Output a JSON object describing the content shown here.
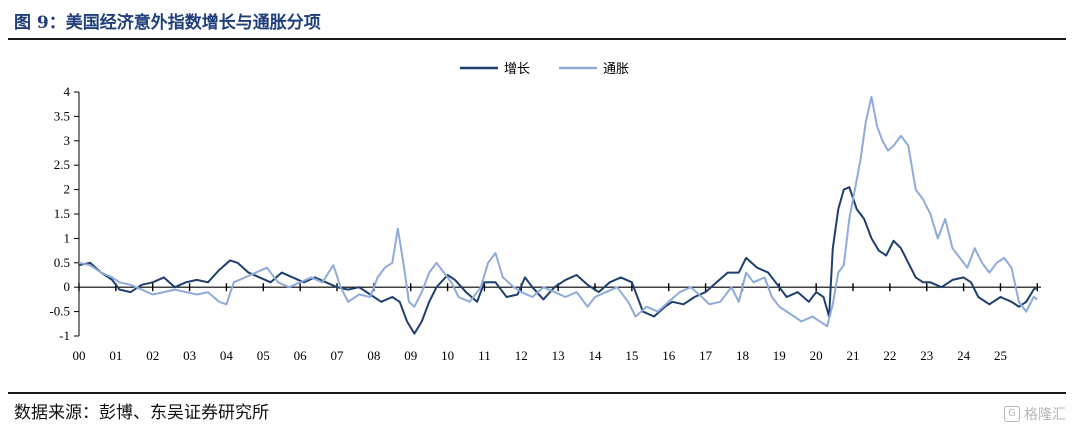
{
  "title": "图 9：美国经济意外指数增长与通胀分项",
  "source": "数据来源：彭博、东吴证券研究所",
  "watermark": "格隆汇",
  "watermark_icon": "G",
  "chart_data": {
    "type": "line",
    "title": "",
    "xlabel": "",
    "ylabel": "",
    "ylim": [
      -1,
      4
    ],
    "y_ticks": [
      -1,
      -0.5,
      0,
      0.5,
      1,
      1.5,
      2,
      2.5,
      3,
      3.5,
      4
    ],
    "x_tick_labels": [
      "00",
      "01",
      "02",
      "03",
      "04",
      "05",
      "06",
      "07",
      "08",
      "09",
      "10",
      "11",
      "12",
      "13",
      "14",
      "15",
      "16",
      "17",
      "18",
      "19",
      "20",
      "21",
      "22",
      "23",
      "24",
      "25"
    ],
    "x_range": [
      2000.0,
      2026.1
    ],
    "legend_position": "top-center",
    "series": [
      {
        "name": "增长",
        "color": "#1f3f6e",
        "points": [
          [
            2000.0,
            0.45
          ],
          [
            2000.3,
            0.5
          ],
          [
            2000.6,
            0.3
          ],
          [
            2000.9,
            0.15
          ],
          [
            2001.1,
            -0.05
          ],
          [
            2001.4,
            -0.1
          ],
          [
            2001.7,
            0.05
          ],
          [
            2002.0,
            0.1
          ],
          [
            2002.3,
            0.2
          ],
          [
            2002.6,
            0.0
          ],
          [
            2002.9,
            0.1
          ],
          [
            2003.2,
            0.15
          ],
          [
            2003.5,
            0.1
          ],
          [
            2003.8,
            0.35
          ],
          [
            2004.1,
            0.55
          ],
          [
            2004.3,
            0.5
          ],
          [
            2004.6,
            0.3
          ],
          [
            2004.9,
            0.2
          ],
          [
            2005.2,
            0.1
          ],
          [
            2005.5,
            0.3
          ],
          [
            2005.8,
            0.2
          ],
          [
            2006.1,
            0.1
          ],
          [
            2006.4,
            0.2
          ],
          [
            2006.7,
            0.1
          ],
          [
            2007.0,
            0.0
          ],
          [
            2007.3,
            -0.05
          ],
          [
            2007.6,
            0.0
          ],
          [
            2007.9,
            -0.15
          ],
          [
            2008.2,
            -0.3
          ],
          [
            2008.5,
            -0.2
          ],
          [
            2008.7,
            -0.3
          ],
          [
            2008.9,
            -0.7
          ],
          [
            2009.1,
            -0.95
          ],
          [
            2009.3,
            -0.7
          ],
          [
            2009.5,
            -0.3
          ],
          [
            2009.7,
            0.0
          ],
          [
            2010.0,
            0.25
          ],
          [
            2010.2,
            0.15
          ],
          [
            2010.5,
            -0.1
          ],
          [
            2010.8,
            -0.3
          ],
          [
            2011.0,
            0.1
          ],
          [
            2011.3,
            0.1
          ],
          [
            2011.6,
            -0.2
          ],
          [
            2011.9,
            -0.15
          ],
          [
            2012.1,
            0.2
          ],
          [
            2012.3,
            0.0
          ],
          [
            2012.6,
            -0.25
          ],
          [
            2012.9,
            0.0
          ],
          [
            2013.2,
            0.15
          ],
          [
            2013.5,
            0.25
          ],
          [
            2013.8,
            0.05
          ],
          [
            2014.1,
            -0.1
          ],
          [
            2014.4,
            0.1
          ],
          [
            2014.7,
            0.2
          ],
          [
            2015.0,
            0.1
          ],
          [
            2015.3,
            -0.5
          ],
          [
            2015.6,
            -0.6
          ],
          [
            2015.9,
            -0.4
          ],
          [
            2016.1,
            -0.3
          ],
          [
            2016.4,
            -0.35
          ],
          [
            2016.7,
            -0.2
          ],
          [
            2017.0,
            -0.1
          ],
          [
            2017.3,
            0.1
          ],
          [
            2017.6,
            0.3
          ],
          [
            2017.9,
            0.3
          ],
          [
            2018.1,
            0.6
          ],
          [
            2018.4,
            0.4
          ],
          [
            2018.7,
            0.3
          ],
          [
            2018.9,
            0.1
          ],
          [
            2019.2,
            -0.2
          ],
          [
            2019.5,
            -0.1
          ],
          [
            2019.8,
            -0.3
          ],
          [
            2020.0,
            -0.1
          ],
          [
            2020.2,
            -0.2
          ],
          [
            2020.35,
            -0.6
          ],
          [
            2020.45,
            0.8
          ],
          [
            2020.6,
            1.6
          ],
          [
            2020.75,
            2.0
          ],
          [
            2020.9,
            2.05
          ],
          [
            2021.1,
            1.6
          ],
          [
            2021.3,
            1.4
          ],
          [
            2021.5,
            1.0
          ],
          [
            2021.7,
            0.75
          ],
          [
            2021.9,
            0.65
          ],
          [
            2022.1,
            0.95
          ],
          [
            2022.3,
            0.8
          ],
          [
            2022.5,
            0.5
          ],
          [
            2022.7,
            0.2
          ],
          [
            2022.9,
            0.1
          ],
          [
            2023.1,
            0.1
          ],
          [
            2023.4,
            0.0
          ],
          [
            2023.7,
            0.15
          ],
          [
            2024.0,
            0.2
          ],
          [
            2024.2,
            0.1
          ],
          [
            2024.4,
            -0.2
          ],
          [
            2024.7,
            -0.35
          ],
          [
            2025.0,
            -0.2
          ],
          [
            2025.3,
            -0.3
          ],
          [
            2025.5,
            -0.4
          ],
          [
            2025.7,
            -0.3
          ],
          [
            2025.9,
            -0.05
          ],
          [
            2026.0,
            0.0
          ]
        ]
      },
      {
        "name": "通胀",
        "color": "#8eabda",
        "points": [
          [
            2000.0,
            0.5
          ],
          [
            2000.3,
            0.45
          ],
          [
            2000.6,
            0.3
          ],
          [
            2000.9,
            0.2
          ],
          [
            2001.1,
            0.1
          ],
          [
            2001.4,
            0.05
          ],
          [
            2001.7,
            -0.05
          ],
          [
            2002.0,
            -0.15
          ],
          [
            2002.3,
            -0.1
          ],
          [
            2002.6,
            -0.05
          ],
          [
            2002.9,
            -0.1
          ],
          [
            2003.2,
            -0.15
          ],
          [
            2003.5,
            -0.1
          ],
          [
            2003.8,
            -0.3
          ],
          [
            2004.0,
            -0.35
          ],
          [
            2004.2,
            0.1
          ],
          [
            2004.5,
            0.2
          ],
          [
            2004.8,
            0.3
          ],
          [
            2005.1,
            0.4
          ],
          [
            2005.4,
            0.1
          ],
          [
            2005.7,
            0.0
          ],
          [
            2006.0,
            0.1
          ],
          [
            2006.3,
            0.2
          ],
          [
            2006.6,
            0.1
          ],
          [
            2006.9,
            0.45
          ],
          [
            2007.1,
            0.0
          ],
          [
            2007.3,
            -0.3
          ],
          [
            2007.6,
            -0.15
          ],
          [
            2007.9,
            -0.2
          ],
          [
            2008.1,
            0.2
          ],
          [
            2008.3,
            0.4
          ],
          [
            2008.5,
            0.5
          ],
          [
            2008.65,
            1.2
          ],
          [
            2008.8,
            0.5
          ],
          [
            2008.95,
            -0.3
          ],
          [
            2009.1,
            -0.4
          ],
          [
            2009.3,
            -0.1
          ],
          [
            2009.5,
            0.3
          ],
          [
            2009.7,
            0.5
          ],
          [
            2009.9,
            0.3
          ],
          [
            2010.1,
            0.1
          ],
          [
            2010.3,
            -0.2
          ],
          [
            2010.6,
            -0.3
          ],
          [
            2010.9,
            0.0
          ],
          [
            2011.1,
            0.5
          ],
          [
            2011.3,
            0.7
          ],
          [
            2011.5,
            0.2
          ],
          [
            2011.8,
            0.0
          ],
          [
            2012.0,
            -0.1
          ],
          [
            2012.3,
            -0.2
          ],
          [
            2012.6,
            0.0
          ],
          [
            2012.9,
            -0.1
          ],
          [
            2013.2,
            -0.2
          ],
          [
            2013.5,
            -0.1
          ],
          [
            2013.8,
            -0.4
          ],
          [
            2014.0,
            -0.2
          ],
          [
            2014.3,
            -0.1
          ],
          [
            2014.6,
            0.0
          ],
          [
            2014.9,
            -0.3
          ],
          [
            2015.1,
            -0.6
          ],
          [
            2015.4,
            -0.4
          ],
          [
            2015.7,
            -0.5
          ],
          [
            2016.0,
            -0.3
          ],
          [
            2016.3,
            -0.1
          ],
          [
            2016.6,
            0.0
          ],
          [
            2016.9,
            -0.2
          ],
          [
            2017.1,
            -0.35
          ],
          [
            2017.4,
            -0.3
          ],
          [
            2017.7,
            0.0
          ],
          [
            2017.9,
            -0.3
          ],
          [
            2018.1,
            0.3
          ],
          [
            2018.3,
            0.1
          ],
          [
            2018.6,
            0.2
          ],
          [
            2018.8,
            -0.2
          ],
          [
            2019.0,
            -0.4
          ],
          [
            2019.3,
            -0.55
          ],
          [
            2019.6,
            -0.7
          ],
          [
            2019.9,
            -0.6
          ],
          [
            2020.1,
            -0.7
          ],
          [
            2020.3,
            -0.8
          ],
          [
            2020.45,
            -0.35
          ],
          [
            2020.6,
            0.3
          ],
          [
            2020.75,
            0.45
          ],
          [
            2020.9,
            1.4
          ],
          [
            2021.05,
            2.0
          ],
          [
            2021.2,
            2.6
          ],
          [
            2021.35,
            3.4
          ],
          [
            2021.5,
            3.9
          ],
          [
            2021.65,
            3.3
          ],
          [
            2021.8,
            3.0
          ],
          [
            2021.95,
            2.8
          ],
          [
            2022.1,
            2.9
          ],
          [
            2022.3,
            3.1
          ],
          [
            2022.5,
            2.9
          ],
          [
            2022.7,
            2.0
          ],
          [
            2022.9,
            1.8
          ],
          [
            2023.1,
            1.5
          ],
          [
            2023.3,
            1.0
          ],
          [
            2023.5,
            1.4
          ],
          [
            2023.7,
            0.8
          ],
          [
            2023.9,
            0.6
          ],
          [
            2024.1,
            0.4
          ],
          [
            2024.3,
            0.8
          ],
          [
            2024.5,
            0.5
          ],
          [
            2024.7,
            0.3
          ],
          [
            2024.9,
            0.5
          ],
          [
            2025.1,
            0.6
          ],
          [
            2025.3,
            0.4
          ],
          [
            2025.5,
            -0.3
          ],
          [
            2025.7,
            -0.5
          ],
          [
            2025.9,
            -0.2
          ],
          [
            2026.0,
            -0.25
          ]
        ]
      }
    ]
  }
}
